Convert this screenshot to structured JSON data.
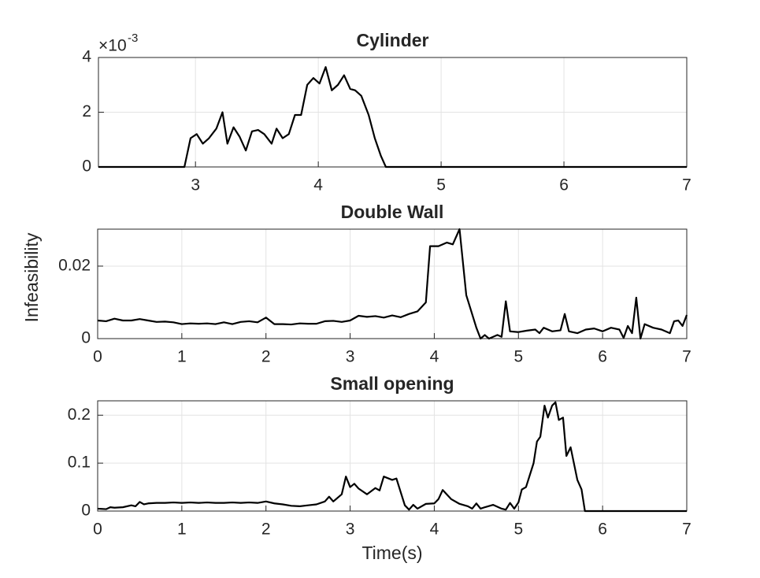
{
  "chart_data": [
    {
      "type": "line",
      "title": "Cylinder",
      "y_multiplier": {
        "base": "×10",
        "exponent": "-3"
      },
      "color": "#000000",
      "grid": true,
      "xlim": [
        2.21,
        7
      ],
      "ylim": [
        0,
        0.004
      ],
      "xticks": [
        3,
        4,
        5,
        6,
        7
      ],
      "yticks": [
        0,
        {
          "value": 0.002,
          "label": "2"
        },
        {
          "value": 0.004,
          "label": "4"
        }
      ],
      "x": [
        2.21,
        2.91,
        2.96,
        3.01,
        3.06,
        3.11,
        3.17,
        3.22,
        3.26,
        3.31,
        3.36,
        3.41,
        3.46,
        3.51,
        3.56,
        3.62,
        3.66,
        3.71,
        3.76,
        3.81,
        3.86,
        3.91,
        3.96,
        4.01,
        4.06,
        4.11,
        4.16,
        4.21,
        4.26,
        4.3,
        4.35,
        4.41,
        4.46,
        4.51,
        4.55,
        7
      ],
      "values": [
        0,
        0,
        0.00105,
        0.0012,
        0.00085,
        0.00105,
        0.0014,
        0.002,
        0.00085,
        0.00145,
        0.0011,
        0.0006,
        0.0013,
        0.00135,
        0.0012,
        0.00085,
        0.0014,
        0.00105,
        0.0012,
        0.0019,
        0.0019,
        0.003,
        0.00325,
        0.00305,
        0.00365,
        0.0028,
        0.003,
        0.00335,
        0.00285,
        0.0028,
        0.0026,
        0.0019,
        0.00105,
        0.0004,
        0,
        0
      ]
    },
    {
      "type": "line",
      "title": "Double Wall",
      "ylabel": "Infeasibility",
      "color": "#000000",
      "grid": true,
      "xlim": [
        0,
        7
      ],
      "ylim": [
        0,
        0.0302
      ],
      "xticks": [
        0,
        1,
        2,
        3,
        4,
        5,
        6,
        7
      ],
      "yticks": [
        0,
        0.02
      ],
      "x": [
        0,
        0.1,
        0.2,
        0.3,
        0.4,
        0.5,
        0.6,
        0.7,
        0.8,
        0.9,
        1.0,
        1.1,
        1.2,
        1.3,
        1.4,
        1.5,
        1.6,
        1.7,
        1.8,
        1.9,
        2.0,
        2.1,
        2.2,
        2.3,
        2.4,
        2.5,
        2.6,
        2.7,
        2.8,
        2.9,
        3.0,
        3.1,
        3.2,
        3.3,
        3.4,
        3.5,
        3.6,
        3.7,
        3.8,
        3.9,
        3.95,
        4.05,
        4.15,
        4.22,
        4.3,
        4.38,
        4.5,
        4.55,
        4.6,
        4.65,
        4.75,
        4.8,
        4.85,
        4.9,
        5.0,
        5.1,
        5.2,
        5.25,
        5.3,
        5.4,
        5.5,
        5.55,
        5.6,
        5.7,
        5.8,
        5.9,
        6.0,
        6.1,
        6.2,
        6.25,
        6.3,
        6.35,
        6.4,
        6.45,
        6.5,
        6.6,
        6.7,
        6.8,
        6.85,
        6.9,
        6.95,
        7.0
      ],
      "values": [
        0.005,
        0.0048,
        0.0055,
        0.005,
        0.005,
        0.0054,
        0.005,
        0.0046,
        0.0047,
        0.0045,
        0.004,
        0.0042,
        0.0041,
        0.0042,
        0.004,
        0.0045,
        0.004,
        0.0046,
        0.0048,
        0.0045,
        0.0058,
        0.004,
        0.004,
        0.0039,
        0.0042,
        0.0041,
        0.0041,
        0.0048,
        0.0049,
        0.0046,
        0.005,
        0.0063,
        0.006,
        0.0062,
        0.0058,
        0.0064,
        0.0059,
        0.0068,
        0.0075,
        0.01,
        0.0255,
        0.0255,
        0.0265,
        0.026,
        0.0302,
        0.012,
        0.003,
        0,
        0.001,
        0,
        0.001,
        0.0005,
        0.0103,
        0.002,
        0.0018,
        0.0022,
        0.0025,
        0.0015,
        0.003,
        0.002,
        0.0023,
        0.0068,
        0.002,
        0.0015,
        0.0025,
        0.0028,
        0.002,
        0.003,
        0.0025,
        0.0002,
        0.0035,
        0.0015,
        0.0113,
        0,
        0.004,
        0.003,
        0.0025,
        0.0015,
        0.0048,
        0.005,
        0.0035,
        0.0065
      ]
    },
    {
      "type": "line",
      "title": "Small opening",
      "xlabel": "Time(s)",
      "color": "#000000",
      "grid": true,
      "xlim": [
        0,
        7
      ],
      "ylim": [
        0,
        0.23
      ],
      "xticks": [
        0,
        1,
        2,
        3,
        4,
        5,
        6,
        7
      ],
      "yticks": [
        0,
        0.1,
        0.2
      ],
      "x": [
        0,
        0.1,
        0.15,
        0.2,
        0.3,
        0.4,
        0.45,
        0.5,
        0.55,
        0.6,
        0.7,
        0.8,
        0.9,
        1.0,
        1.1,
        1.2,
        1.3,
        1.4,
        1.5,
        1.6,
        1.7,
        1.8,
        1.9,
        2.0,
        2.1,
        2.2,
        2.3,
        2.4,
        2.5,
        2.6,
        2.7,
        2.75,
        2.8,
        2.9,
        2.95,
        3.0,
        3.05,
        3.1,
        3.2,
        3.3,
        3.35,
        3.4,
        3.5,
        3.55,
        3.6,
        3.65,
        3.7,
        3.75,
        3.8,
        3.9,
        4.0,
        4.05,
        4.1,
        4.2,
        4.3,
        4.4,
        4.45,
        4.5,
        4.55,
        4.6,
        4.7,
        4.8,
        4.85,
        4.9,
        4.95,
        5.0,
        5.04,
        5.09,
        5.18,
        5.22,
        5.26,
        5.31,
        5.35,
        5.4,
        5.44,
        5.48,
        5.53,
        5.57,
        5.62,
        5.7,
        5.75,
        5.79,
        7
      ],
      "values": [
        0.005,
        0.004,
        0.008,
        0.007,
        0.008,
        0.012,
        0.01,
        0.019,
        0.014,
        0.016,
        0.017,
        0.017,
        0.018,
        0.017,
        0.018,
        0.017,
        0.018,
        0.017,
        0.017,
        0.018,
        0.017,
        0.018,
        0.017,
        0.02,
        0.016,
        0.014,
        0.011,
        0.01,
        0.012,
        0.014,
        0.02,
        0.03,
        0.02,
        0.035,
        0.072,
        0.05,
        0.057,
        0.047,
        0.035,
        0.048,
        0.043,
        0.072,
        0.065,
        0.068,
        0.04,
        0.012,
        0.003,
        0.013,
        0.005,
        0.015,
        0.016,
        0.025,
        0.044,
        0.025,
        0.015,
        0.01,
        0.005,
        0.016,
        0.005,
        0.008,
        0.013,
        0.005,
        0.003,
        0.017,
        0.005,
        0.018,
        0.045,
        0.05,
        0.1,
        0.145,
        0.155,
        0.22,
        0.195,
        0.22,
        0.227,
        0.19,
        0.195,
        0.115,
        0.133,
        0.065,
        0.045,
        0,
        0
      ]
    }
  ]
}
